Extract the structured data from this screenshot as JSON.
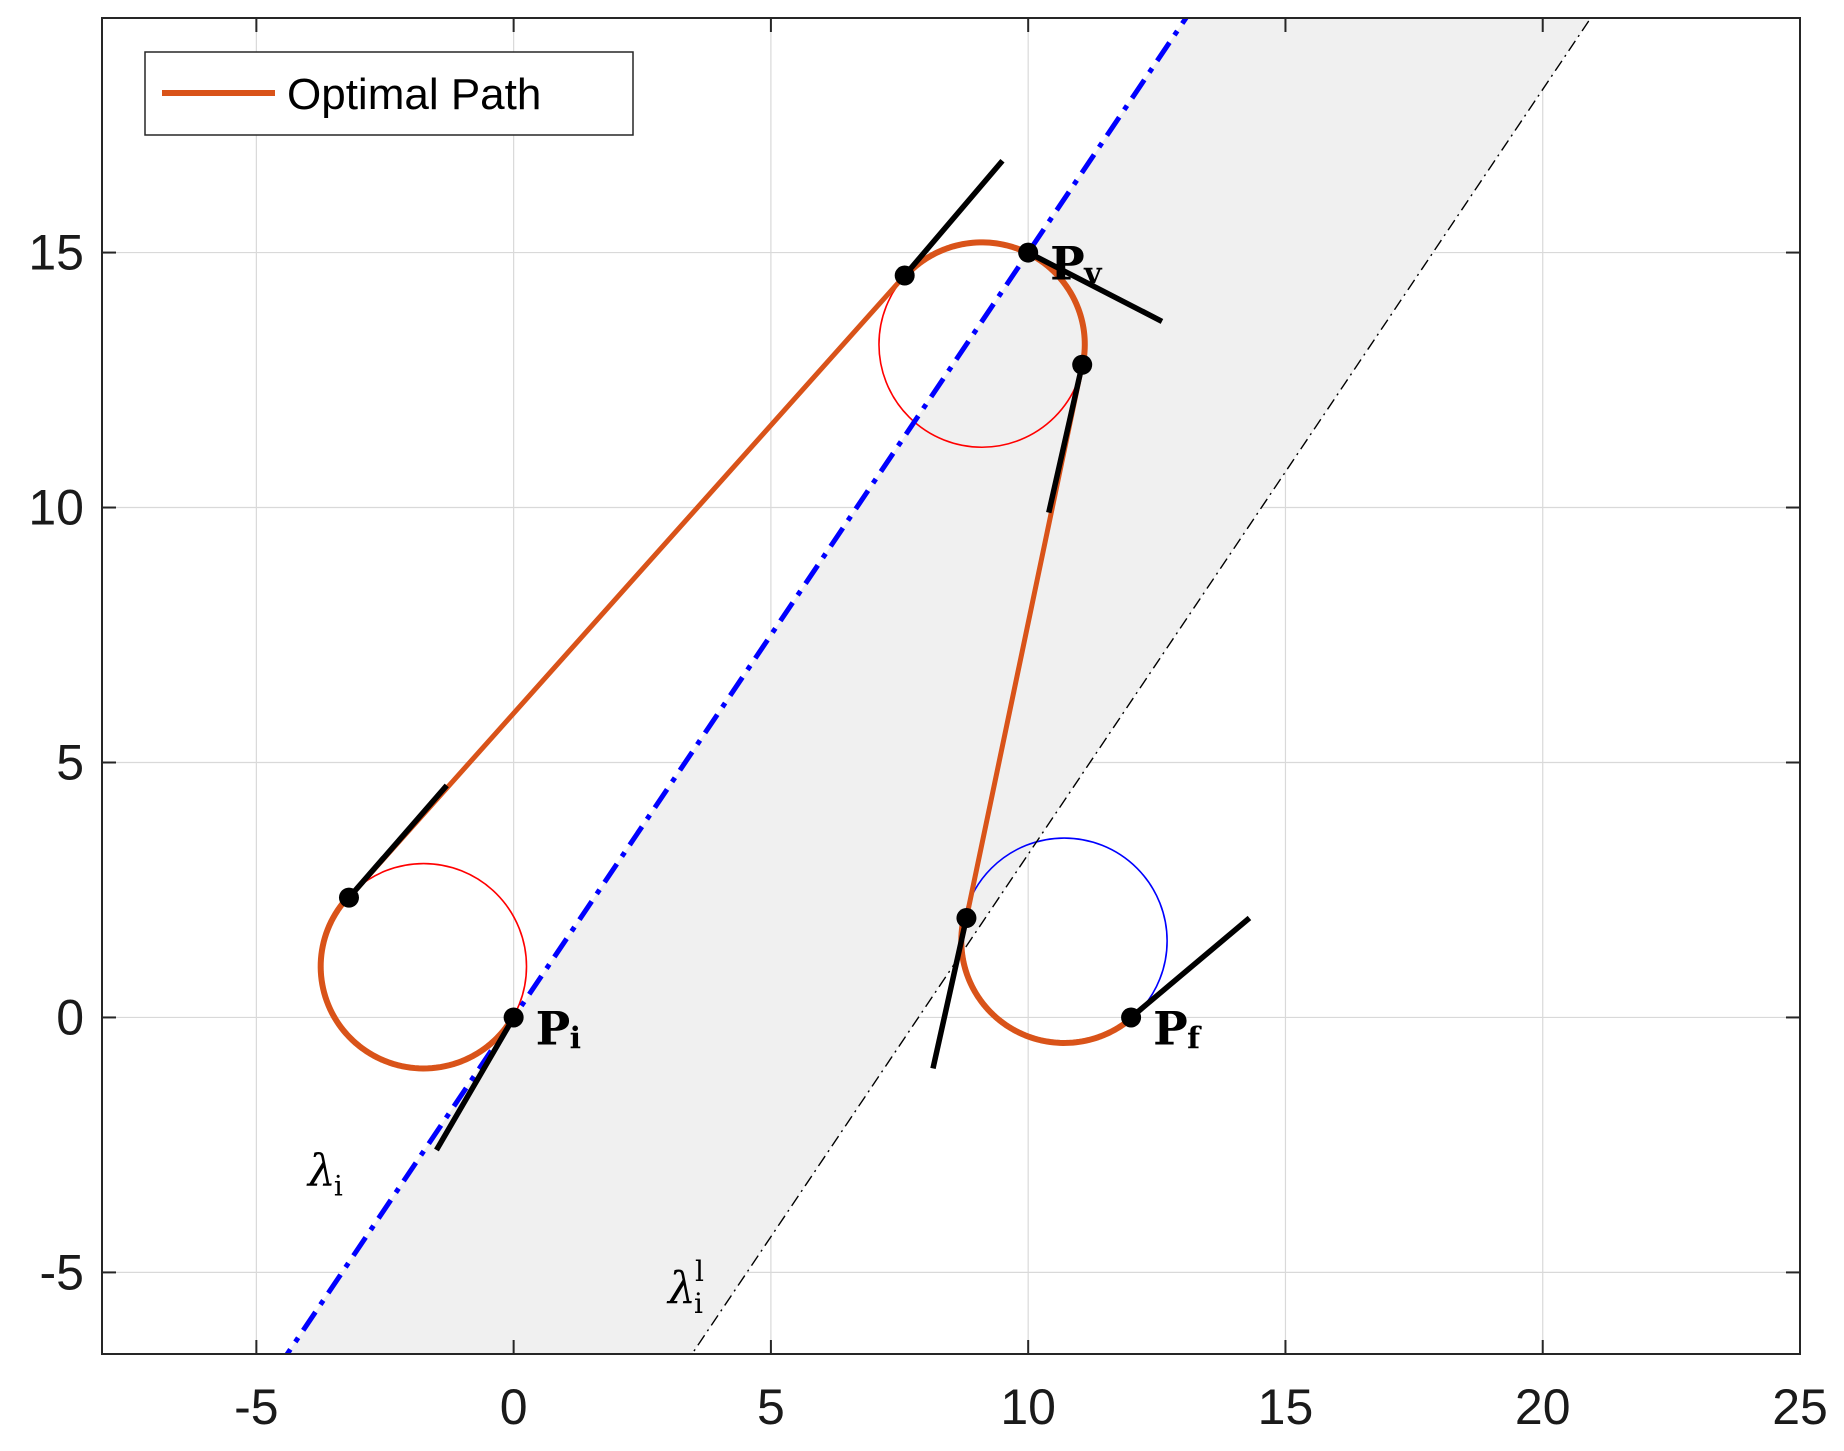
{
  "chart_data": {
    "type": "line",
    "title": "",
    "xlabel": "",
    "ylabel": "",
    "xlim": [
      -8,
      25
    ],
    "ylim": [
      -6.6,
      19.6
    ],
    "xticks": [
      -5,
      0,
      5,
      10,
      15,
      20,
      25
    ],
    "yticks": [
      -5,
      0,
      5,
      10,
      15
    ],
    "xtick_labels": [
      "-5",
      "0",
      "5",
      "10",
      "15",
      "20",
      "25"
    ],
    "ytick_labels": [
      "-5",
      "0",
      "5",
      "10",
      "15"
    ],
    "grid": true,
    "legend": {
      "location": "top-left",
      "entries": [
        "Optimal Path"
      ]
    },
    "colors": {
      "path": "#D95319",
      "tangent": "#000000",
      "lambda_i": "#0000FF",
      "circle_left": "#FF0000",
      "circle_right": "#0000FF",
      "band": "#F0F0F0",
      "boundary": "#000000"
    },
    "band": {
      "slope": 1.5,
      "intercept_lower": 0,
      "intercept_upper": -11.8
    },
    "lines": [
      {
        "name": "λ_i",
        "style": "blue-dash-dot",
        "slope": 1.5,
        "intercept": 0
      },
      {
        "name": "λ_i^l",
        "style": "black-dash-dot",
        "slope": 1.5,
        "intercept": -11.8
      }
    ],
    "circles": [
      {
        "center": [
          -1.75,
          1.0
        ],
        "radius": 2.0,
        "color": "red"
      },
      {
        "center": [
          9.1,
          13.2
        ],
        "radius": 2.0,
        "color": "red"
      },
      {
        "center": [
          10.7,
          1.5
        ],
        "radius": 2.0,
        "color": "blue"
      }
    ],
    "series": [
      {
        "name": "Optimal Path",
        "segments": [
          {
            "kind": "arc",
            "center": [
              -1.75,
              1.0
            ],
            "radius": 2.0,
            "from_point": [
              0,
              0
            ],
            "to_point": [
              -3.2,
              2.35
            ],
            "through": "bottom"
          },
          {
            "kind": "line",
            "points": [
              [
                -3.2,
                2.35
              ],
              [
                7.6,
                14.55
              ]
            ]
          },
          {
            "kind": "arc",
            "center": [
              9.1,
              13.2
            ],
            "radius": 2.0,
            "from_point": [
              7.6,
              14.55
            ],
            "to_point": [
              11.05,
              12.8
            ],
            "through": "top"
          },
          {
            "kind": "line",
            "points": [
              [
                11.05,
                12.8
              ],
              [
                8.8,
                1.95
              ]
            ]
          },
          {
            "kind": "arc",
            "center": [
              10.7,
              1.5
            ],
            "radius": 2.0,
            "from_point": [
              8.8,
              1.95
            ],
            "to_point": [
              12.0,
              0
            ],
            "through": "bottom"
          }
        ]
      }
    ],
    "tangents": [
      {
        "points": [
          [
            -1.5,
            -2.6
          ],
          [
            0,
            0
          ]
        ]
      },
      {
        "points": [
          [
            -3.2,
            2.35
          ],
          [
            -1.3,
            4.55
          ]
        ]
      },
      {
        "points": [
          [
            7.6,
            14.55
          ],
          [
            9.5,
            16.8
          ]
        ]
      },
      {
        "points": [
          [
            10.0,
            15.0
          ],
          [
            12.6,
            13.65
          ]
        ]
      },
      {
        "points": [
          [
            11.05,
            12.8
          ],
          [
            10.4,
            9.9
          ]
        ]
      },
      {
        "points": [
          [
            8.8,
            1.95
          ],
          [
            8.15,
            -1.0
          ]
        ]
      },
      {
        "points": [
          [
            12.0,
            0
          ],
          [
            14.3,
            1.95
          ]
        ]
      }
    ],
    "markers": [
      {
        "x": 0,
        "y": 0,
        "label": "P",
        "sub": "i"
      },
      {
        "x": 10,
        "y": 15,
        "label": "P",
        "sub": "v"
      },
      {
        "x": 12,
        "y": 0,
        "label": "P",
        "sub": "f"
      },
      {
        "x": -3.2,
        "y": 2.35
      },
      {
        "x": 7.6,
        "y": 14.55
      },
      {
        "x": 11.05,
        "y": 12.8
      },
      {
        "x": 8.8,
        "y": 1.95
      }
    ],
    "line_labels": [
      {
        "text": "λ",
        "sub": "i",
        "sup": "",
        "x": -4.0,
        "y": -3.3
      },
      {
        "text": "λ",
        "sub": "i",
        "sup": "l",
        "x": 3.0,
        "y": -5.6
      }
    ]
  }
}
